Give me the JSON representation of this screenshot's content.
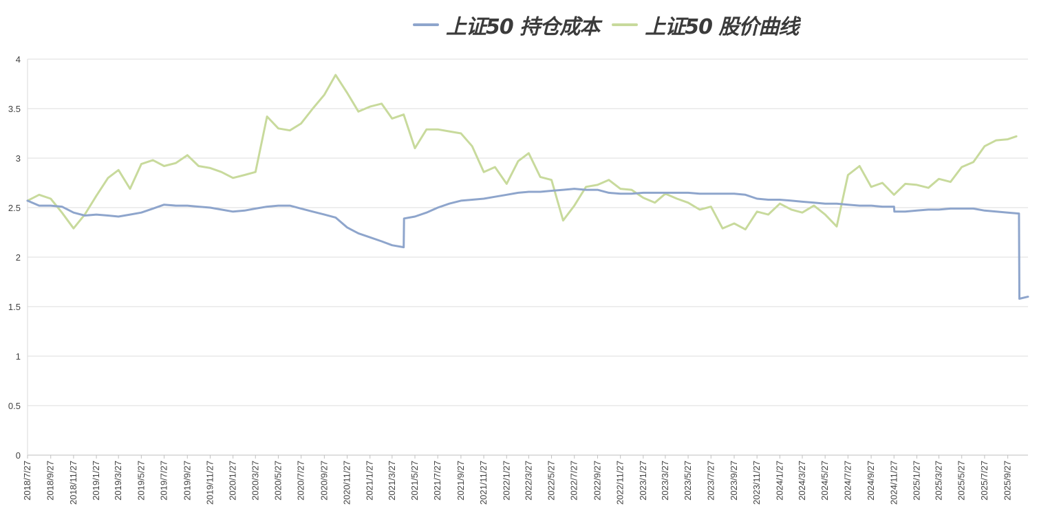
{
  "chart_data": {
    "type": "line",
    "title": "",
    "xlabel": "",
    "ylabel": "",
    "ylim": [
      0,
      4
    ],
    "y_ticks": [
      "0",
      "0.5",
      "1",
      "1.5",
      "2",
      "2.5",
      "3",
      "3.5",
      "4"
    ],
    "grid": "horizontal",
    "legend_position": "top",
    "x_ticks": [
      "2018/7/27",
      "2018/9/27",
      "2018/11/27",
      "2019/1/27",
      "2019/3/27",
      "2019/5/27",
      "2019/7/27",
      "2019/9/27",
      "2019/11/27",
      "2020/1/27",
      "2020/3/27",
      "2020/5/27",
      "2020/7/27",
      "2020/9/27",
      "2020/11/27",
      "2021/1/27",
      "2021/3/27",
      "2021/5/27",
      "2021/7/27",
      "2021/9/27",
      "2021/11/27",
      "2022/1/27",
      "2022/3/27",
      "2022/5/27",
      "2022/7/27",
      "2022/9/27",
      "2022/11/27",
      "2023/1/27",
      "2023/3/27",
      "2023/5/27",
      "2023/7/27",
      "2023/9/27",
      "2023/11/27",
      "2024/1/27",
      "2024/3/27",
      "2024/5/27",
      "2024/7/27",
      "2024/9/27",
      "2024/11/27",
      "2025/1/27",
      "2025/3/27",
      "2025/5/27",
      "2025/7/27",
      "2025/9/27"
    ],
    "series": [
      {
        "name": "上证50 持仓成本",
        "color": "#8EA5CC",
        "points": [
          [
            "2018/7/27",
            2.57
          ],
          [
            "2018/8/27",
            2.52
          ],
          [
            "2018/9/27",
            2.52
          ],
          [
            "2018/10/27",
            2.51
          ],
          [
            "2018/11/27",
            2.45
          ],
          [
            "2018/12/27",
            2.42
          ],
          [
            "2019/1/27",
            2.43
          ],
          [
            "2019/2/27",
            2.42
          ],
          [
            "2019/3/27",
            2.41
          ],
          [
            "2019/4/27",
            2.43
          ],
          [
            "2019/5/27",
            2.45
          ],
          [
            "2019/6/27",
            2.49
          ],
          [
            "2019/7/27",
            2.53
          ],
          [
            "2019/8/27",
            2.52
          ],
          [
            "2019/9/27",
            2.52
          ],
          [
            "2019/10/27",
            2.51
          ],
          [
            "2019/11/27",
            2.5
          ],
          [
            "2019/12/27",
            2.48
          ],
          [
            "2020/1/27",
            2.46
          ],
          [
            "2020/2/27",
            2.47
          ],
          [
            "2020/3/27",
            2.49
          ],
          [
            "2020/4/27",
            2.51
          ],
          [
            "2020/5/27",
            2.52
          ],
          [
            "2020/6/27",
            2.52
          ],
          [
            "2020/7/27",
            2.49
          ],
          [
            "2020/8/27",
            2.46
          ],
          [
            "2020/9/27",
            2.43
          ],
          [
            "2020/10/27",
            2.4
          ],
          [
            "2020/11/27",
            2.3
          ],
          [
            "2020/12/27",
            2.24
          ],
          [
            "2021/1/27",
            2.2
          ],
          [
            "2021/2/27",
            2.16
          ],
          [
            "2021/3/27",
            2.12
          ],
          [
            "2021/4/27",
            2.1
          ],
          [
            "2021/4/28",
            2.39
          ],
          [
            "2021/5/27",
            2.41
          ],
          [
            "2021/6/27",
            2.45
          ],
          [
            "2021/7/27",
            2.5
          ],
          [
            "2021/8/27",
            2.54
          ],
          [
            "2021/9/27",
            2.57
          ],
          [
            "2021/10/27",
            2.58
          ],
          [
            "2021/11/27",
            2.59
          ],
          [
            "2021/12/27",
            2.61
          ],
          [
            "2022/1/27",
            2.63
          ],
          [
            "2022/2/27",
            2.65
          ],
          [
            "2022/3/27",
            2.66
          ],
          [
            "2022/4/27",
            2.66
          ],
          [
            "2022/5/27",
            2.67
          ],
          [
            "2022/6/27",
            2.68
          ],
          [
            "2022/7/27",
            2.69
          ],
          [
            "2022/8/27",
            2.68
          ],
          [
            "2022/9/27",
            2.68
          ],
          [
            "2022/10/27",
            2.65
          ],
          [
            "2022/11/27",
            2.64
          ],
          [
            "2022/12/27",
            2.64
          ],
          [
            "2023/1/27",
            2.65
          ],
          [
            "2023/2/27",
            2.65
          ],
          [
            "2023/3/27",
            2.65
          ],
          [
            "2023/4/27",
            2.65
          ],
          [
            "2023/5/27",
            2.65
          ],
          [
            "2023/6/27",
            2.64
          ],
          [
            "2023/7/27",
            2.64
          ],
          [
            "2023/8/27",
            2.64
          ],
          [
            "2023/9/27",
            2.64
          ],
          [
            "2023/10/27",
            2.63
          ],
          [
            "2023/11/27",
            2.59
          ],
          [
            "2023/12/27",
            2.58
          ],
          [
            "2024/1/27",
            2.58
          ],
          [
            "2024/2/27",
            2.57
          ],
          [
            "2024/3/27",
            2.56
          ],
          [
            "2024/4/27",
            2.55
          ],
          [
            "2024/5/27",
            2.54
          ],
          [
            "2024/6/27",
            2.54
          ],
          [
            "2024/7/27",
            2.53
          ],
          [
            "2024/8/27",
            2.52
          ],
          [
            "2024/9/27",
            2.52
          ],
          [
            "2024/10/27",
            2.51
          ],
          [
            "2024/11/27",
            2.51
          ],
          [
            "2024/11/28",
            2.46
          ],
          [
            "2024/12/27",
            2.46
          ],
          [
            "2025/1/27",
            2.47
          ],
          [
            "2025/2/27",
            2.48
          ],
          [
            "2025/3/27",
            2.48
          ],
          [
            "2025/4/27",
            2.49
          ],
          [
            "2025/5/27",
            2.49
          ],
          [
            "2025/6/27",
            2.49
          ],
          [
            "2025/7/27",
            2.47
          ],
          [
            "2025/8/27",
            2.46
          ],
          [
            "2025/9/27",
            2.45
          ],
          [
            "2025/10/27",
            2.44
          ],
          [
            "2025/10/28",
            1.58
          ],
          [
            "2025/11/20",
            1.6
          ]
        ]
      },
      {
        "name": "上证50 股价曲线",
        "color": "#C8DA9C",
        "points": [
          [
            "2018/7/27",
            2.57
          ],
          [
            "2018/8/27",
            2.63
          ],
          [
            "2018/9/27",
            2.59
          ],
          [
            "2018/10/27",
            2.45
          ],
          [
            "2018/11/27",
            2.29
          ],
          [
            "2018/12/27",
            2.43
          ],
          [
            "2019/1/27",
            2.62
          ],
          [
            "2019/2/27",
            2.8
          ],
          [
            "2019/3/27",
            2.88
          ],
          [
            "2019/4/27",
            2.69
          ],
          [
            "2019/5/27",
            2.94
          ],
          [
            "2019/6/27",
            2.98
          ],
          [
            "2019/7/27",
            2.92
          ],
          [
            "2019/8/27",
            2.95
          ],
          [
            "2019/9/27",
            3.03
          ],
          [
            "2019/10/27",
            2.92
          ],
          [
            "2019/11/27",
            2.9
          ],
          [
            "2019/12/27",
            2.86
          ],
          [
            "2020/1/27",
            2.8
          ],
          [
            "2020/2/27",
            2.83
          ],
          [
            "2020/3/27",
            2.86
          ],
          [
            "2020/4/27",
            3.42
          ],
          [
            "2020/5/27",
            3.3
          ],
          [
            "2020/6/27",
            3.28
          ],
          [
            "2020/7/27",
            3.35
          ],
          [
            "2020/8/27",
            3.5
          ],
          [
            "2020/9/27",
            3.64
          ],
          [
            "2020/10/27",
            3.84
          ],
          [
            "2020/11/27",
            3.66
          ],
          [
            "2020/12/27",
            3.47
          ],
          [
            "2021/1/27",
            3.52
          ],
          [
            "2021/2/27",
            3.55
          ],
          [
            "2021/3/27",
            3.4
          ],
          [
            "2021/4/27",
            3.44
          ],
          [
            "2021/5/27",
            3.1
          ],
          [
            "2021/6/27",
            3.29
          ],
          [
            "2021/7/27",
            3.29
          ],
          [
            "2021/8/27",
            3.27
          ],
          [
            "2021/9/27",
            3.25
          ],
          [
            "2021/10/27",
            3.12
          ],
          [
            "2021/11/27",
            2.86
          ],
          [
            "2021/12/27",
            2.91
          ],
          [
            "2022/1/27",
            2.74
          ],
          [
            "2022/2/27",
            2.97
          ],
          [
            "2022/3/27",
            3.05
          ],
          [
            "2022/4/27",
            2.81
          ],
          [
            "2022/5/27",
            2.78
          ],
          [
            "2022/6/27",
            2.37
          ],
          [
            "2022/7/27",
            2.52
          ],
          [
            "2022/8/27",
            2.71
          ],
          [
            "2022/9/27",
            2.73
          ],
          [
            "2022/10/27",
            2.78
          ],
          [
            "2022/11/27",
            2.69
          ],
          [
            "2022/12/27",
            2.68
          ],
          [
            "2023/1/27",
            2.6
          ],
          [
            "2023/2/27",
            2.55
          ],
          [
            "2023/3/27",
            2.64
          ],
          [
            "2023/4/27",
            2.59
          ],
          [
            "2023/5/27",
            2.55
          ],
          [
            "2023/6/27",
            2.48
          ],
          [
            "2023/7/27",
            2.51
          ],
          [
            "2023/8/27",
            2.29
          ],
          [
            "2023/9/27",
            2.34
          ],
          [
            "2023/10/27",
            2.28
          ],
          [
            "2023/11/27",
            2.46
          ],
          [
            "2023/12/27",
            2.43
          ],
          [
            "2024/1/27",
            2.54
          ],
          [
            "2024/2/27",
            2.48
          ],
          [
            "2024/3/27",
            2.45
          ],
          [
            "2024/4/27",
            2.52
          ],
          [
            "2024/5/27",
            2.43
          ],
          [
            "2024/6/27",
            2.31
          ],
          [
            "2024/7/27",
            2.83
          ],
          [
            "2024/8/27",
            2.92
          ],
          [
            "2024/9/27",
            2.71
          ],
          [
            "2024/10/27",
            2.75
          ],
          [
            "2024/11/27",
            2.63
          ],
          [
            "2024/12/27",
            2.74
          ],
          [
            "2025/1/27",
            2.73
          ],
          [
            "2025/2/27",
            2.7
          ],
          [
            "2025/3/27",
            2.79
          ],
          [
            "2025/4/27",
            2.76
          ],
          [
            "2025/5/27",
            2.91
          ],
          [
            "2025/6/27",
            2.96
          ],
          [
            "2025/7/27",
            3.12
          ],
          [
            "2025/8/27",
            3.18
          ],
          [
            "2025/9/27",
            3.19
          ],
          [
            "2025/10/20",
            3.22
          ]
        ]
      }
    ]
  }
}
